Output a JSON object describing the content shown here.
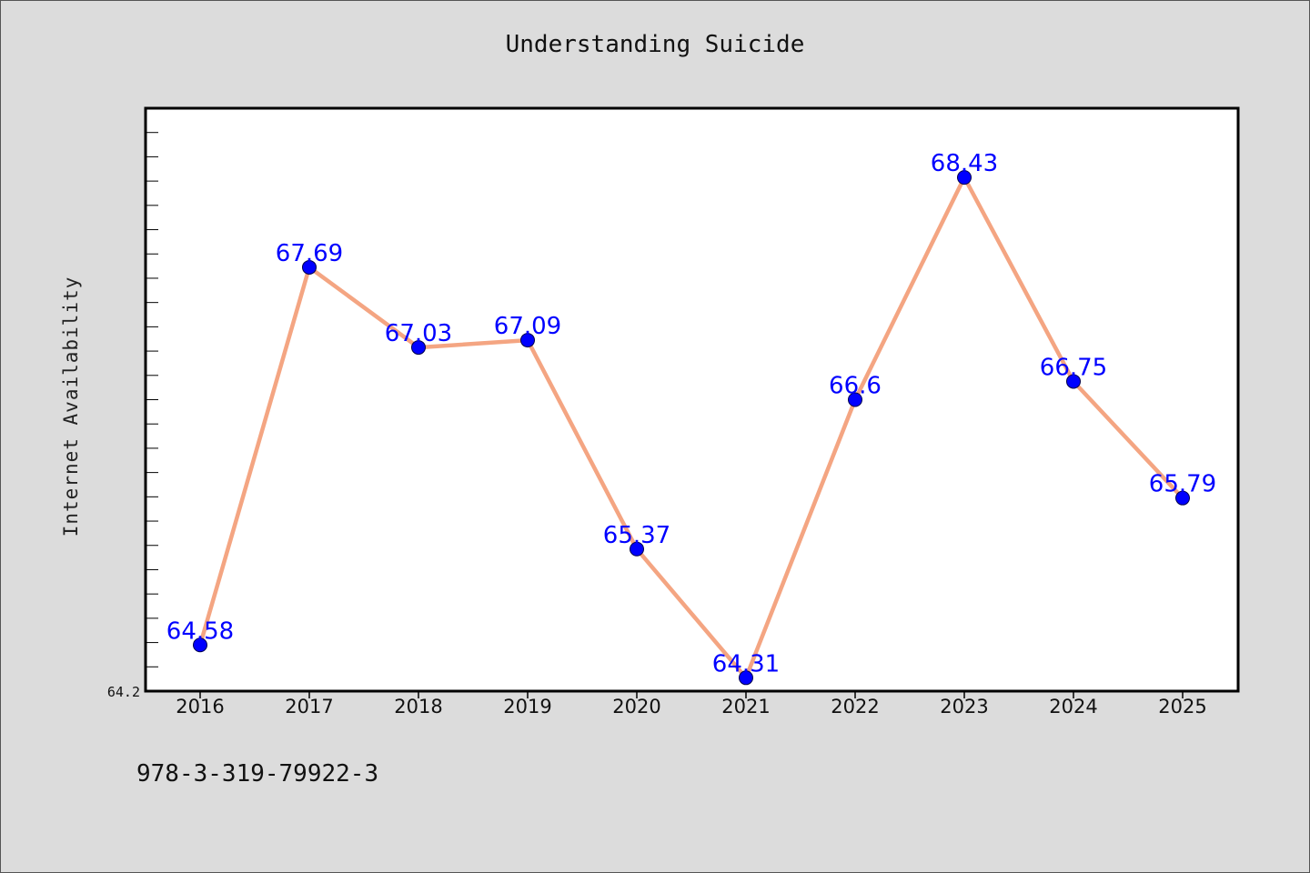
{
  "chart_data": {
    "type": "line",
    "title": "Understanding Suicide",
    "xlabel": "",
    "ylabel": "Internet Availability",
    "categories": [
      "2016",
      "2017",
      "2018",
      "2019",
      "2020",
      "2021",
      "2022",
      "2023",
      "2024",
      "2025"
    ],
    "series": [
      {
        "values": [
          64.58,
          67.69,
          67.03,
          67.09,
          65.37,
          64.31,
          66.6,
          68.43,
          66.75,
          65.79
        ],
        "labels": [
          "64.58",
          "67.69",
          "67.03",
          "67.09",
          "65.37",
          "64.31",
          "66.6",
          "68.43",
          "66.75",
          "65.79"
        ],
        "line_color": "#f4a582",
        "marker_color": "#0000ff"
      }
    ],
    "ylim": [
      64.2,
      69.0
    ],
    "ytick_labels": [
      {
        "value": 64.2,
        "label": "64.2"
      }
    ],
    "grid": false,
    "legend": "none",
    "colors": {
      "background": "#dcdcdc",
      "plot_background": "#ffffff",
      "label_color": "#0000ff"
    }
  },
  "footer": {
    "isbn": "978-3-319-79922-3"
  }
}
